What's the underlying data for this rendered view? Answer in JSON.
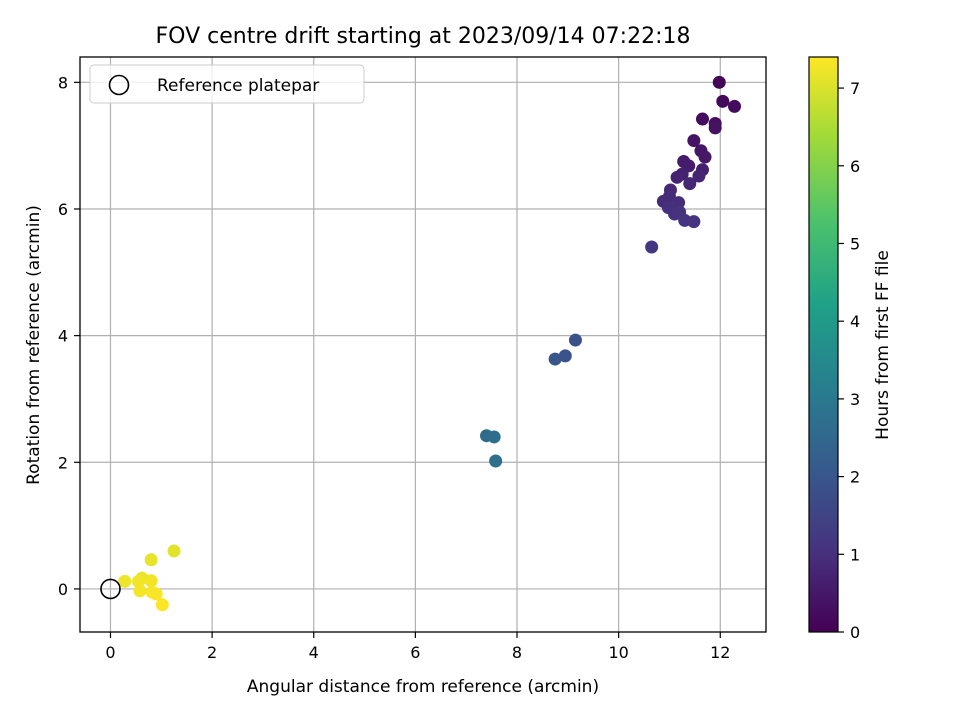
{
  "chart_data": {
    "type": "scatter",
    "title": "FOV centre drift starting at 2023/09/14 07:22:18",
    "xlabel": "Angular distance from reference (arcmin)",
    "ylabel": "Rotation from reference (arcmin)",
    "xlim": [
      -0.6,
      12.9
    ],
    "ylim": [
      -0.68,
      8.4
    ],
    "xticks": [
      "0",
      "2",
      "4",
      "6",
      "8",
      "10",
      "12"
    ],
    "yticks": [
      "0",
      "2",
      "4",
      "6",
      "8"
    ],
    "grid": true,
    "legend": {
      "placement": "upper-left",
      "entries": [
        "Reference platepar"
      ]
    },
    "reference_point": {
      "x": 0,
      "y": 0,
      "label": "Reference platepar"
    },
    "colorbar": {
      "label": "Hours from first FF file",
      "min": 0,
      "max": 7.4,
      "ticks": [
        "0",
        "1",
        "2",
        "3",
        "4",
        "5",
        "6",
        "7"
      ],
      "colormap": "viridis"
    },
    "points": [
      {
        "x": 11.98,
        "y": 8.0,
        "h": 0.1
      },
      {
        "x": 12.05,
        "y": 7.7,
        "h": 0.15
      },
      {
        "x": 12.28,
        "y": 7.62,
        "h": 0.2
      },
      {
        "x": 11.65,
        "y": 7.42,
        "h": 0.25
      },
      {
        "x": 11.9,
        "y": 7.35,
        "h": 0.3
      },
      {
        "x": 11.9,
        "y": 7.28,
        "h": 0.35
      },
      {
        "x": 11.48,
        "y": 7.08,
        "h": 0.4
      },
      {
        "x": 11.62,
        "y": 6.92,
        "h": 0.45
      },
      {
        "x": 11.7,
        "y": 6.82,
        "h": 0.5
      },
      {
        "x": 11.28,
        "y": 6.75,
        "h": 0.55
      },
      {
        "x": 11.38,
        "y": 6.68,
        "h": 0.6
      },
      {
        "x": 11.65,
        "y": 6.62,
        "h": 0.65
      },
      {
        "x": 11.25,
        "y": 6.55,
        "h": 0.7
      },
      {
        "x": 11.15,
        "y": 6.5,
        "h": 0.72
      },
      {
        "x": 11.58,
        "y": 6.52,
        "h": 0.75
      },
      {
        "x": 11.4,
        "y": 6.4,
        "h": 0.8
      },
      {
        "x": 11.02,
        "y": 6.3,
        "h": 0.85
      },
      {
        "x": 11.0,
        "y": 6.2,
        "h": 0.9
      },
      {
        "x": 10.88,
        "y": 6.12,
        "h": 0.92
      },
      {
        "x": 11.18,
        "y": 6.1,
        "h": 0.95
      },
      {
        "x": 10.98,
        "y": 6.02,
        "h": 1.0
      },
      {
        "x": 11.1,
        "y": 5.92,
        "h": 1.02
      },
      {
        "x": 11.2,
        "y": 5.95,
        "h": 1.05
      },
      {
        "x": 11.3,
        "y": 5.82,
        "h": 1.08
      },
      {
        "x": 11.48,
        "y": 5.8,
        "h": 1.1
      },
      {
        "x": 10.65,
        "y": 5.4,
        "h": 1.15
      },
      {
        "x": 9.15,
        "y": 3.93,
        "h": 1.85
      },
      {
        "x": 8.95,
        "y": 3.68,
        "h": 1.9
      },
      {
        "x": 8.75,
        "y": 3.63,
        "h": 1.95
      },
      {
        "x": 7.4,
        "y": 2.42,
        "h": 2.6
      },
      {
        "x": 7.55,
        "y": 2.4,
        "h": 2.65
      },
      {
        "x": 7.58,
        "y": 2.02,
        "h": 2.7
      },
      {
        "x": 1.25,
        "y": 0.6,
        "h": 7.1
      },
      {
        "x": 0.8,
        "y": 0.46,
        "h": 7.15
      },
      {
        "x": 0.62,
        "y": 0.17,
        "h": 7.2
      },
      {
        "x": 0.28,
        "y": 0.12,
        "h": 7.22
      },
      {
        "x": 0.55,
        "y": 0.12,
        "h": 7.25
      },
      {
        "x": 0.8,
        "y": 0.13,
        "h": 7.28
      },
      {
        "x": 0.58,
        "y": -0.03,
        "h": 7.3
      },
      {
        "x": 0.82,
        "y": -0.05,
        "h": 7.32
      },
      {
        "x": 0.9,
        "y": -0.08,
        "h": 7.35
      },
      {
        "x": 1.02,
        "y": -0.25,
        "h": 7.38
      }
    ]
  }
}
